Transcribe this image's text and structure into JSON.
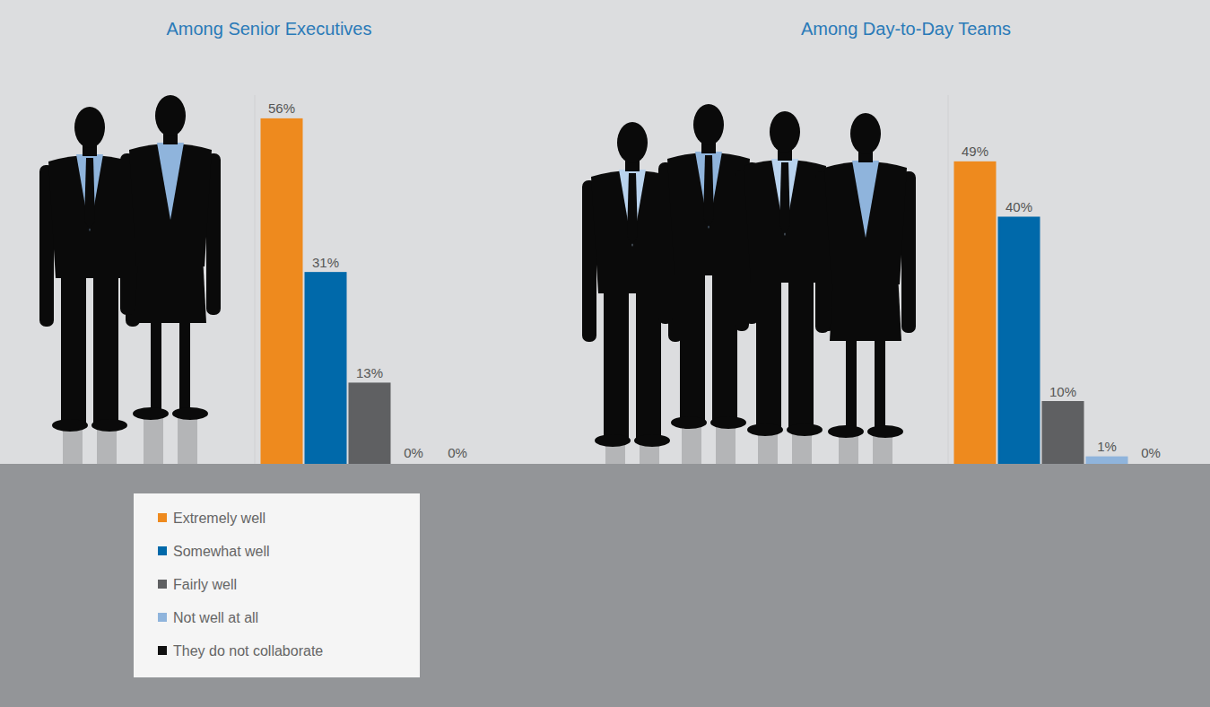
{
  "chart_data": {
    "type": "bar",
    "categories": [
      "Among Senior Executives",
      "Among Day-to-Day Teams"
    ],
    "series": [
      {
        "name": "Extremely well",
        "color": "#ee8a1e",
        "values": [
          56,
          49
        ],
        "value_labels": [
          "56%",
          "49%"
        ]
      },
      {
        "name": "Somewhat well",
        "color": "#0069aa",
        "values": [
          31,
          40
        ],
        "value_labels": [
          "31%",
          "40%"
        ]
      },
      {
        "name": "Fairly well",
        "color": "#5f6062",
        "values": [
          13,
          10
        ],
        "value_labels": [
          "13%",
          "10%"
        ]
      },
      {
        "name": "Not well at all",
        "color": "#8fb4dc",
        "values": [
          0,
          1
        ],
        "value_labels": [
          "0%",
          "1%"
        ]
      },
      {
        "name": "They do not collaborate",
        "color": "#111111",
        "values": [
          0,
          0
        ],
        "value_labels": [
          "0%",
          "0%"
        ]
      }
    ],
    "ylim": [
      0,
      60
    ],
    "data_labels": true,
    "tick_labels": false,
    "legend": "bottom left"
  }
}
